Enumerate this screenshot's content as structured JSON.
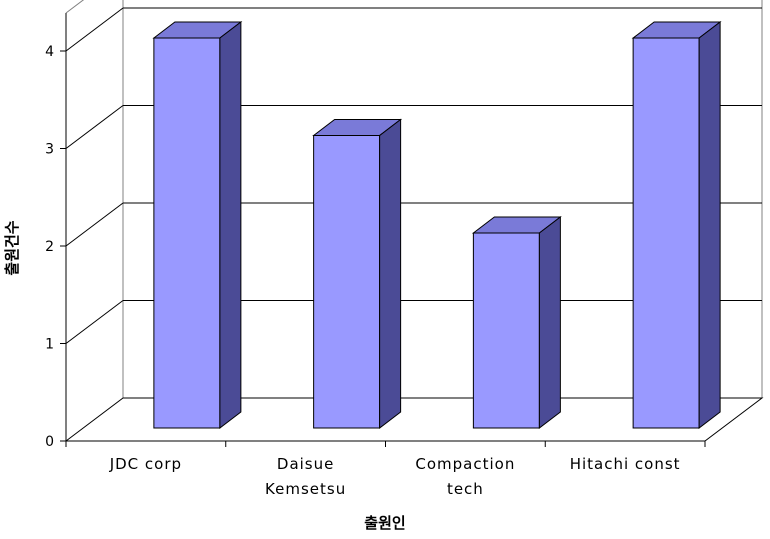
{
  "chart_data": {
    "type": "bar",
    "style": "3d-column",
    "categories": [
      "JDC corp",
      "Daisue Kemsetsu",
      "Compaction tech",
      "Hitachi const"
    ],
    "category_lines": [
      [
        "JDC corp"
      ],
      [
        "Daisue",
        "Kemsetsu"
      ],
      [
        "Compaction",
        "tech"
      ],
      [
        "Hitachi const"
      ]
    ],
    "values": [
      4,
      3,
      2,
      4
    ],
    "title": "",
    "xlabel": "출원인",
    "ylabel": "출원건수",
    "ylim": [
      0,
      4
    ],
    "yticks": [
      "0",
      "1",
      "2",
      "3",
      "4"
    ],
    "grid": true,
    "legend": "none",
    "colors": {
      "bar_front": "#9999FF",
      "bar_top": "#7A7AD8",
      "bar_side": "#4B4B96",
      "axis": "#000000",
      "grid": "#000000",
      "wall": "#808080"
    }
  }
}
